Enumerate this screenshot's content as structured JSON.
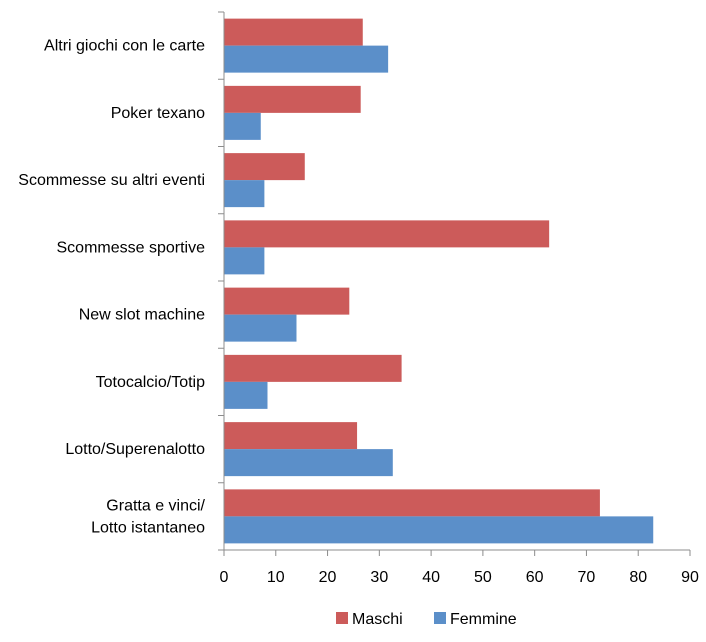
{
  "chart_data": {
    "type": "bar",
    "orientation": "horizontal",
    "categories": [
      "Altri giochi con le carte",
      "Poker texano",
      "Scommesse su altri eventi",
      "Scommesse sportive",
      "New slot machine",
      "Totocalcio/Totip",
      "Lotto/Superenalotto",
      "Gratta e vinci/ Lotto istantaneo"
    ],
    "series": [
      {
        "name": "Maschi",
        "color": "#cc5b5a",
        "values": [
          26.8,
          26.4,
          15.6,
          62.8,
          24.2,
          34.3,
          25.7,
          72.6
        ]
      },
      {
        "name": "Femmine",
        "color": "#5b8fc9",
        "values": [
          31.7,
          7.1,
          7.8,
          7.8,
          14.0,
          8.4,
          32.6,
          82.9
        ]
      }
    ],
    "xlim": [
      0,
      90
    ],
    "xticks": [
      "0",
      "10",
      "20",
      "30",
      "40",
      "50",
      "60",
      "70",
      "80",
      "90"
    ],
    "legend_position": "bottom",
    "grid": false
  }
}
